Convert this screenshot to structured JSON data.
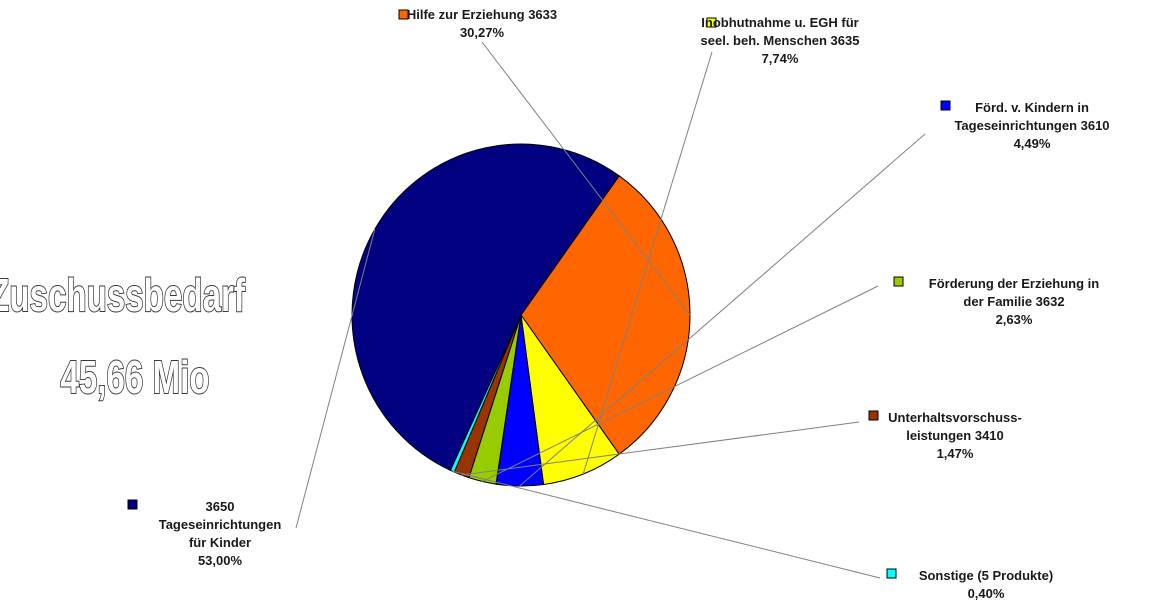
{
  "headline": {
    "line1": "Zuschussbedarf",
    "line2": "45,66 Mio"
  },
  "chart_data": {
    "type": "pie",
    "slices": [
      {
        "label": "Hilfe  zur Erziehung 3633",
        "label_lines": [
          "Hilfe  zur Erziehung 3633"
        ],
        "pct_text": "30,27%",
        "value": 30.27,
        "color": "#FF6600"
      },
      {
        "label": "Inobhutnahme u. EGH für seel. beh. Menschen 3635",
        "label_lines": [
          "Inobhutnahme u. EGH für",
          "seel. beh. Menschen 3635"
        ],
        "pct_text": "7,74%",
        "value": 7.74,
        "color": "#FFFF00"
      },
      {
        "label": "Förd. v. Kindern in Tageseinrichtungen 3610",
        "label_lines": [
          "Förd. v. Kindern in",
          "Tageseinrichtungen 3610"
        ],
        "pct_text": "4,49%",
        "value": 4.49,
        "color": "#0000FF"
      },
      {
        "label": "Förderung der Erziehung in der Familie 3632",
        "label_lines": [
          "Förderung der Erziehung in",
          "der Familie 3632"
        ],
        "pct_text": "2,63%",
        "value": 2.63,
        "color": "#99CC00"
      },
      {
        "label": "Unterhaltsvorschuss- leistungen 3410",
        "label_lines": [
          "Unterhaltsvorschuss-",
          "leistungen 3410"
        ],
        "pct_text": "1,47%",
        "value": 1.47,
        "color": "#993300"
      },
      {
        "label": "Sonstige (5 Produkte)",
        "label_lines": [
          "Sonstige (5 Produkte)"
        ],
        "pct_text": "0,40%",
        "value": 0.4,
        "color": "#00FFFF"
      },
      {
        "label": "3650 Tageseinrichtungen für Kinder",
        "label_lines": [
          "3650",
          "Tageseinrichtungen",
          "für Kinder"
        ],
        "pct_text": "53,00%",
        "value": 53.0,
        "color": "#000080"
      }
    ]
  }
}
